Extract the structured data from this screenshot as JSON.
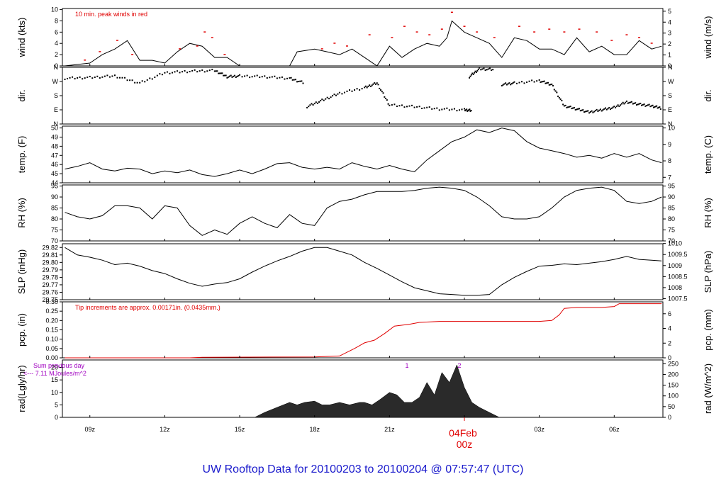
{
  "footer_title": "UW Rooftop Data for 20100203  to  20100204 @ 07:57:47  (UTC)",
  "date_label": "04Feb",
  "date_hour": "00z",
  "colors": {
    "text": "#000000",
    "red": "#e00000",
    "purple": "#a000c0",
    "blue": "#1a1acc",
    "fill": "#2a2a2a"
  },
  "x_ticks": [
    {
      "h": 9,
      "label": "09z"
    },
    {
      "h": 12,
      "label": "12z"
    },
    {
      "h": 15,
      "label": "15z"
    },
    {
      "h": 18,
      "label": "18z"
    },
    {
      "h": 21,
      "label": "21z"
    },
    {
      "h": 27,
      "label": "03z"
    },
    {
      "h": 30,
      "label": "06z"
    }
  ],
  "x_range_hours": [
    7.9,
    31.95
  ],
  "chart_data": [
    {
      "type": "line",
      "left_label": "wind (kts)",
      "right_label": "wind (m/s)",
      "left_ticks": [
        "0",
        "2",
        "4",
        "6",
        "8",
        "10"
      ],
      "left_range": [
        0,
        10.2
      ],
      "right_ticks": [
        "0",
        "1",
        "2",
        "3",
        "4",
        "5"
      ],
      "annotation": "10 min. peak winds in red",
      "x": [
        8,
        9,
        9.5,
        10,
        10.5,
        11,
        11.5,
        12,
        12.5,
        13,
        13.5,
        14,
        14.5,
        15,
        15.5,
        16,
        16.5,
        17,
        17.3,
        18,
        18.5,
        19,
        19.5,
        20,
        20.5,
        21,
        21.5,
        22,
        22.5,
        23,
        23.3,
        23.5,
        24,
        24.5,
        25,
        25.5,
        26,
        26.5,
        27,
        27.5,
        28,
        28.5,
        29,
        29.5,
        30,
        30.5,
        31,
        31.5,
        31.9
      ],
      "values": [
        0,
        0.5,
        2,
        3,
        4.5,
        1,
        1,
        0.5,
        2.5,
        4,
        3.5,
        1.5,
        1.5,
        0,
        0,
        0,
        0,
        0,
        2.5,
        3,
        2.5,
        2,
        3,
        1.5,
        0,
        3.5,
        1.5,
        3,
        4,
        3.5,
        5,
        8,
        6,
        5,
        4,
        1.5,
        5,
        4.5,
        3,
        3,
        2,
        5,
        2.5,
        3.5,
        2,
        2,
        4.5,
        3,
        3.5
      ],
      "peak_x": [
        8.8,
        9.4,
        10.1,
        10.7,
        12.6,
        13.3,
        13.6,
        13.9,
        14.4,
        18.3,
        18.8,
        19.3,
        20.2,
        21.1,
        21.6,
        22.1,
        22.6,
        23.1,
        23.5,
        24.0,
        24.5,
        25.2,
        26.2,
        26.8,
        27.4,
        28.0,
        28.6,
        29.3,
        29.9,
        30.5,
        31.0,
        31.5
      ],
      "peak_values": [
        1,
        2.5,
        4.5,
        2,
        3,
        3.5,
        6,
        5,
        2,
        3,
        4,
        3.5,
        5.5,
        5,
        7,
        6,
        5.5,
        6.5,
        9.5,
        7,
        6,
        5,
        7,
        6,
        6.5,
        6,
        6.5,
        6,
        4.5,
        5.5,
        5,
        4
      ]
    },
    {
      "type": "scatter",
      "left_label": "dir.",
      "right_label": "dir.",
      "left_ticks": [
        "N",
        "E",
        "S",
        "W",
        "N"
      ],
      "right_ticks": [
        "N",
        "E",
        "S",
        "W",
        "N"
      ],
      "left_range": [
        0,
        360
      ],
      "segments": [
        {
          "x": [
            8.0,
            9.0,
            10.0,
            11.0,
            12.0,
            13.0,
            14.0,
            14.5,
            15.0,
            16.0,
            17.0,
            17.6
          ],
          "values": [
            290,
            295,
            305,
            260,
            325,
            335,
            340,
            300,
            305,
            300,
            290,
            260
          ]
        },
        {
          "x": [
            17.7,
            18.3,
            19.0,
            20.0,
            20.5,
            21.0,
            22.0,
            23.0,
            24.0,
            24.3
          ],
          "values": [
            110,
            150,
            195,
            230,
            260,
            120,
            110,
            95,
            90,
            85
          ]
        },
        {
          "x": [
            24.2,
            24.6,
            25.2
          ],
          "values": [
            300,
            350,
            345
          ]
        },
        {
          "x": [
            25.5,
            26.0,
            27.0,
            27.5,
            28.0,
            28.5,
            29.0,
            29.5,
            30.0,
            30.5,
            31.0,
            31.5,
            31.9
          ],
          "values": [
            250,
            260,
            275,
            250,
            115,
            95,
            75,
            90,
            105,
            140,
            125,
            115,
            100
          ]
        }
      ]
    },
    {
      "type": "line",
      "left_label": "temp. (F)",
      "right_label": "temp. (C)",
      "left_ticks": [
        "44",
        "45",
        "46",
        "47",
        "48",
        "49",
        "50"
      ],
      "left_range": [
        44,
        50.2
      ],
      "right_ticks": [
        "7",
        "8",
        "9",
        "10"
      ],
      "right_values_c": [
        7,
        8,
        9,
        10
      ],
      "x": [
        8,
        8.5,
        9,
        9.5,
        10,
        10.5,
        11,
        11.5,
        12,
        12.5,
        13,
        13.5,
        14,
        14.5,
        15,
        15.5,
        16,
        16.5,
        17,
        17.5,
        18,
        18.5,
        19,
        19.5,
        20,
        20.5,
        21,
        21.5,
        22,
        22.5,
        23,
        23.5,
        24,
        24.5,
        25,
        25.5,
        26,
        26.5,
        27,
        27.5,
        28,
        28.5,
        29,
        29.5,
        30,
        30.5,
        31,
        31.5,
        31.9
      ],
      "values": [
        45.5,
        45.8,
        46.2,
        45.5,
        45.3,
        45.6,
        45.5,
        45.0,
        45.3,
        45.1,
        45.4,
        44.9,
        44.7,
        45.0,
        45.4,
        45.0,
        45.5,
        46.1,
        46.2,
        45.7,
        45.5,
        45.7,
        45.5,
        46.2,
        45.8,
        45.5,
        45.9,
        45.5,
        45.2,
        46.5,
        47.5,
        48.5,
        49.0,
        49.8,
        49.5,
        50.0,
        49.7,
        48.5,
        47.8,
        47.5,
        47.2,
        46.8,
        47.0,
        46.7,
        47.2,
        46.8,
        47.2,
        46.5,
        46.2
      ]
    },
    {
      "type": "line",
      "left_label": "RH (%)",
      "right_label": "RH (%)",
      "left_ticks": [
        "70",
        "75",
        "80",
        "85",
        "90",
        "95"
      ],
      "left_range": [
        70,
        95.5
      ],
      "right_ticks": [
        "70",
        "75",
        "80",
        "85",
        "90",
        "95"
      ],
      "x": [
        8,
        8.5,
        9,
        9.5,
        10,
        10.5,
        11,
        11.5,
        12,
        12.5,
        13,
        13.5,
        14,
        14.5,
        15,
        15.5,
        16,
        16.5,
        17,
        17.5,
        18,
        18.5,
        19,
        19.5,
        20,
        20.5,
        21,
        21.5,
        22,
        22.5,
        23,
        23.5,
        24,
        24.5,
        25,
        25.5,
        26,
        26.5,
        27,
        27.5,
        28,
        28.5,
        29,
        29.5,
        30,
        30.5,
        31,
        31.5,
        31.9
      ],
      "values": [
        83,
        81,
        80,
        81.5,
        86,
        86,
        85,
        80,
        86,
        85,
        77,
        72.5,
        75,
        73,
        78,
        81,
        78,
        76,
        82,
        78,
        77,
        85,
        88,
        89,
        91,
        92.5,
        92.5,
        92.5,
        93,
        94,
        94.5,
        94,
        93,
        90,
        86,
        81,
        80,
        80,
        81,
        85,
        90,
        93,
        94,
        94.5,
        93,
        88,
        87,
        88,
        90
      ]
    },
    {
      "type": "line",
      "left_label": "SLP (inHg)",
      "right_label": "SLP (hPa)",
      "left_ticks": [
        "29.75",
        "29.76",
        "29.77",
        "29.78",
        "29.79",
        "29.80",
        "29.81",
        "29.82"
      ],
      "left_range": [
        29.75,
        29.825
      ],
      "right_ticks": [
        "1007.5",
        "1008",
        "1008.5",
        "1009",
        "1009.5",
        "1010"
      ],
      "right_values_hpa": [
        1007.5,
        1008,
        1008.5,
        1009,
        1009.5,
        1010
      ],
      "x": [
        8,
        8.5,
        9,
        9.5,
        10,
        10.5,
        11,
        11.5,
        12,
        12.5,
        13,
        13.5,
        14,
        14.5,
        15,
        15.5,
        16,
        16.5,
        17,
        17.5,
        18,
        18.5,
        19,
        19.5,
        20,
        20.5,
        21,
        21.5,
        22,
        22.5,
        23,
        23.5,
        24,
        24.5,
        25,
        25.5,
        26,
        26.5,
        27,
        27.5,
        28,
        28.5,
        29,
        29.5,
        30,
        30.5,
        31,
        31.5,
        31.9
      ],
      "values": [
        29.82,
        29.81,
        29.807,
        29.803,
        29.797,
        29.799,
        29.795,
        29.789,
        29.785,
        29.778,
        29.772,
        29.768,
        29.771,
        29.773,
        29.778,
        29.787,
        29.795,
        29.802,
        29.808,
        29.815,
        29.82,
        29.82,
        29.815,
        29.81,
        29.8,
        29.792,
        29.783,
        29.774,
        29.766,
        29.762,
        29.758,
        29.757,
        29.756,
        29.756,
        29.757,
        29.77,
        29.78,
        29.788,
        29.795,
        29.796,
        29.798,
        29.797,
        29.799,
        29.801,
        29.804,
        29.808,
        29.804,
        29.803,
        29.802
      ]
    },
    {
      "type": "line",
      "left_label": "pcp. (in)",
      "right_label": "pcp. (mm)",
      "left_ticks": [
        "0.00",
        "0.05",
        "0.10",
        "0.15",
        "0.20",
        "0.25",
        "0.30"
      ],
      "left_range": [
        0,
        0.3
      ],
      "right_ticks": [
        "0",
        "2",
        "4",
        "6"
      ],
      "right_values_mm": [
        0,
        2,
        4,
        6
      ],
      "annotation": "Tip increments are approx. 0.00171in. (0.0435mm.)",
      "x": [
        8,
        13,
        13.5,
        18,
        19,
        19.6,
        20.0,
        20.4,
        20.8,
        21.2,
        21.8,
        22.2,
        23.0,
        24.0,
        25.0,
        26.0,
        27.0,
        27.5,
        27.8,
        28.0,
        28.5,
        29.0,
        29.5,
        30.0,
        30.2,
        31.0,
        31.9
      ],
      "values": [
        0,
        0,
        0.003,
        0.005,
        0.01,
        0.05,
        0.08,
        0.095,
        0.13,
        0.17,
        0.18,
        0.19,
        0.195,
        0.195,
        0.195,
        0.195,
        0.195,
        0.2,
        0.23,
        0.265,
        0.27,
        0.27,
        0.27,
        0.275,
        0.29,
        0.29,
        0.29
      ]
    },
    {
      "type": "area",
      "left_label": "rad(Lgly/hr)",
      "right_label": "rad (W/m^2)",
      "left_ticks": [
        "0",
        "5",
        "10",
        "15",
        "20"
      ],
      "left_range": [
        0,
        23
      ],
      "right_ticks": [
        "0",
        "50",
        "100",
        "150",
        "200",
        "250"
      ],
      "right_values_wm2": [
        0,
        50,
        100,
        150,
        200,
        250
      ],
      "annotation": "Sum previous day",
      "annotation2": "<--- 7.11 MJoules/m^2",
      "marker_1": "1",
      "marker_2": "2",
      "x": [
        15.6,
        16.0,
        16.5,
        17.0,
        17.3,
        17.6,
        18.0,
        18.3,
        18.6,
        19.0,
        19.4,
        19.8,
        20.0,
        20.3,
        20.6,
        21.0,
        21.3,
        21.6,
        21.9,
        22.2,
        22.5,
        22.8,
        23.1,
        23.4,
        23.7,
        24.0,
        24.3,
        24.6,
        25.0,
        25.4
      ],
      "values": [
        0,
        2,
        4,
        6,
        5,
        6,
        6.5,
        5,
        5,
        6,
        5,
        6,
        6,
        5,
        7,
        10,
        9,
        6,
        6,
        8,
        14,
        9,
        18,
        14,
        21,
        12,
        6,
        4,
        2,
        0
      ]
    }
  ]
}
